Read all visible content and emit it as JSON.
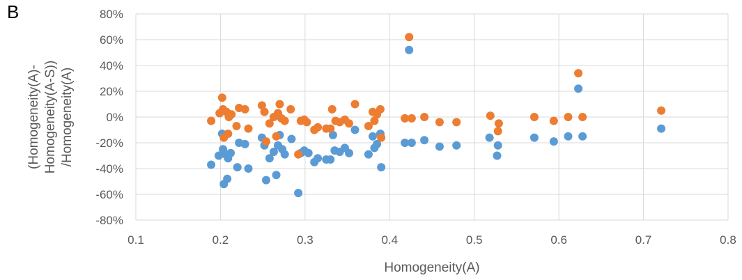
{
  "panel_label": "B",
  "chart_data": {
    "type": "scatter",
    "xlabel": "Homogeneity(A)",
    "ylabel_lines": [
      "(Homogeneity(A)-",
      "Homogeneity(A-S))",
      "/Homogeneity(A)"
    ],
    "xlim": [
      0.1,
      0.8
    ],
    "ylim": [
      -80,
      80
    ],
    "x_ticks": [
      0.1,
      0.2,
      0.3,
      0.4,
      0.5,
      0.6,
      0.7,
      0.8
    ],
    "x_tick_labels": [
      "0.1",
      "0.2",
      "0.3",
      "0.4",
      "0.5",
      "0.6",
      "0.7",
      "0.8"
    ],
    "y_ticks": [
      80,
      60,
      40,
      20,
      0,
      -20,
      -40,
      -60,
      -80
    ],
    "y_tick_labels": [
      "80%",
      "60%",
      "40%",
      "20%",
      "0%",
      "-20%",
      "-40%",
      "-60%",
      "-80%"
    ],
    "grid": true,
    "legend": "none",
    "series": [
      {
        "color": "#5b9bd5",
        "points": [
          [
            0.189,
            -37
          ],
          [
            0.198,
            -30
          ],
          [
            0.202,
            -13
          ],
          [
            0.203,
            -25
          ],
          [
            0.204,
            -52
          ],
          [
            0.206,
            -29
          ],
          [
            0.208,
            -48
          ],
          [
            0.209,
            -32
          ],
          [
            0.212,
            -28
          ],
          [
            0.22,
            -39
          ],
          [
            0.222,
            -20
          ],
          [
            0.229,
            -21
          ],
          [
            0.233,
            -40
          ],
          [
            0.249,
            -16
          ],
          [
            0.252,
            -22
          ],
          [
            0.254,
            -49
          ],
          [
            0.258,
            -32
          ],
          [
            0.263,
            -27
          ],
          [
            0.266,
            -45
          ],
          [
            0.268,
            -22
          ],
          [
            0.27,
            -14
          ],
          [
            0.273,
            -25
          ],
          [
            0.276,
            -29
          ],
          [
            0.284,
            -17
          ],
          [
            0.292,
            -59
          ],
          [
            0.295,
            -28
          ],
          [
            0.299,
            -26
          ],
          [
            0.304,
            -28
          ],
          [
            0.311,
            -35
          ],
          [
            0.315,
            -32
          ],
          [
            0.325,
            -33
          ],
          [
            0.33,
            -33
          ],
          [
            0.333,
            -14
          ],
          [
            0.335,
            -26
          ],
          [
            0.341,
            -27
          ],
          [
            0.347,
            -24
          ],
          [
            0.352,
            -28
          ],
          [
            0.359,
            -10
          ],
          [
            0.375,
            -29
          ],
          [
            0.38,
            -15
          ],
          [
            0.382,
            -24
          ],
          [
            0.385,
            -21
          ],
          [
            0.389,
            -13
          ],
          [
            0.39,
            -39
          ],
          [
            0.418,
            -20
          ],
          [
            0.423,
            52
          ],
          [
            0.426,
            -20
          ],
          [
            0.441,
            -18
          ],
          [
            0.459,
            -23
          ],
          [
            0.479,
            -22
          ],
          [
            0.518,
            -16
          ],
          [
            0.527,
            -30
          ],
          [
            0.528,
            -22
          ],
          [
            0.571,
            -16
          ],
          [
            0.594,
            -19
          ],
          [
            0.611,
            -15
          ],
          [
            0.623,
            22
          ],
          [
            0.628,
            -15
          ],
          [
            0.721,
            -9
          ]
        ]
      },
      {
        "color": "#ed7d31",
        "points": [
          [
            0.189,
            -3
          ],
          [
            0.199,
            3
          ],
          [
            0.202,
            15
          ],
          [
            0.203,
            6
          ],
          [
            0.204,
            -16
          ],
          [
            0.207,
            4
          ],
          [
            0.209,
            -13
          ],
          [
            0.21,
            0
          ],
          [
            0.213,
            2
          ],
          [
            0.219,
            -7
          ],
          [
            0.222,
            7
          ],
          [
            0.229,
            6
          ],
          [
            0.233,
            -9
          ],
          [
            0.249,
            9
          ],
          [
            0.252,
            4
          ],
          [
            0.254,
            -19
          ],
          [
            0.258,
            -5
          ],
          [
            0.263,
            0
          ],
          [
            0.266,
            -15
          ],
          [
            0.268,
            3
          ],
          [
            0.27,
            10
          ],
          [
            0.272,
            -1
          ],
          [
            0.276,
            -3
          ],
          [
            0.283,
            6
          ],
          [
            0.292,
            -29
          ],
          [
            0.295,
            -3
          ],
          [
            0.299,
            -2
          ],
          [
            0.302,
            -4
          ],
          [
            0.311,
            -10
          ],
          [
            0.315,
            -8
          ],
          [
            0.325,
            -9
          ],
          [
            0.33,
            -9
          ],
          [
            0.332,
            6
          ],
          [
            0.336,
            -3
          ],
          [
            0.341,
            -4
          ],
          [
            0.347,
            -2
          ],
          [
            0.352,
            -5
          ],
          [
            0.359,
            10
          ],
          [
            0.375,
            -7
          ],
          [
            0.38,
            4
          ],
          [
            0.382,
            -3
          ],
          [
            0.385,
            2
          ],
          [
            0.389,
            6
          ],
          [
            0.39,
            -16
          ],
          [
            0.418,
            -1
          ],
          [
            0.423,
            62
          ],
          [
            0.426,
            -1
          ],
          [
            0.441,
            0
          ],
          [
            0.459,
            -4
          ],
          [
            0.479,
            -4
          ],
          [
            0.519,
            1
          ],
          [
            0.528,
            -11
          ],
          [
            0.529,
            -5
          ],
          [
            0.571,
            0
          ],
          [
            0.594,
            -3
          ],
          [
            0.611,
            0
          ],
          [
            0.623,
            34
          ],
          [
            0.628,
            0
          ],
          [
            0.721,
            5
          ]
        ]
      }
    ]
  }
}
